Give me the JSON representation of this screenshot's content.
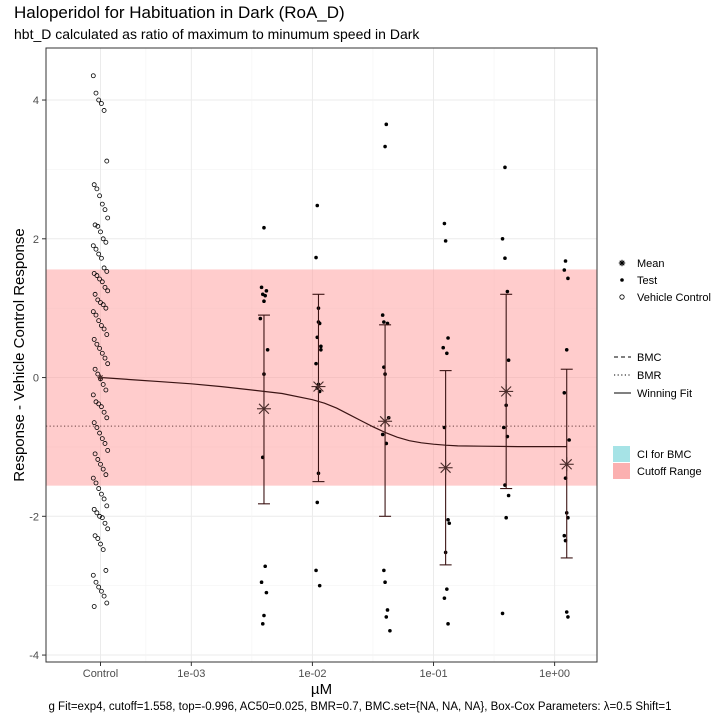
{
  "title": "Haloperidol for Habituation in Dark (RoA_D)",
  "subtitle": "hbt_D calculated as ratio of maximum to minumum speed in Dark",
  "footer": "g Fit=exp4, cutoff=1.558, top=-0.996, AC50=0.025, BMR=0.7, BMC.set={NA, NA, NA}, Box-Cox Parameters: λ=0.5 Shift=1",
  "chart_data": {
    "type": "scatter",
    "xlabel": "µM",
    "ylabel": "Response - Vehicle Control Response",
    "x_ticks": [
      "Control",
      "1e-03",
      "1e-02",
      "1e-01",
      "1e+00"
    ],
    "x_tick_log10": [
      null,
      -3,
      -2,
      -1,
      0
    ],
    "ylim": [
      -4.1,
      4.75
    ],
    "y_ticks": [
      -4,
      -2,
      0,
      2,
      4
    ],
    "log_x": true,
    "xlim_log10": [
      -4.2,
      0.35
    ],
    "control_log10": -3.75,
    "grid": true,
    "colors": {
      "cutoff_fill": "#ff9999",
      "ci_fill": "#a6e3e6",
      "cutoff_fill_legend": "#fbb0b0",
      "mean_color": "#4a2c2a",
      "fit_color": "#3b1414"
    },
    "cutoff_range": [
      -1.558,
      1.558
    ],
    "bmr_line": -0.7,
    "winning_fit": {
      "model": "exp4",
      "x_log10": [
        -3.75,
        -3.5,
        -3.25,
        -3.0,
        -2.75,
        -2.5,
        -2.25,
        -2.0,
        -1.9,
        -1.8,
        -1.7,
        -1.6,
        -1.5,
        -1.4,
        -1.3,
        -1.2,
        -1.1,
        -1.0,
        -0.9,
        -0.8,
        -0.6,
        -0.3,
        0.0,
        0.1
      ],
      "y": [
        0.0,
        -0.03,
        -0.06,
        -0.09,
        -0.13,
        -0.18,
        -0.23,
        -0.32,
        -0.37,
        -0.44,
        -0.53,
        -0.62,
        -0.71,
        -0.79,
        -0.86,
        -0.91,
        -0.94,
        -0.96,
        -0.975,
        -0.985,
        -0.99,
        -0.995,
        -0.996,
        -0.996
      ]
    },
    "mean_points": [
      {
        "x_log10": -3.75,
        "y": 0.0
      },
      {
        "x_log10": -2.4,
        "y": -0.45,
        "ci": [
          -1.82,
          0.9
        ]
      },
      {
        "x_log10": -1.95,
        "y": -0.13,
        "ci": [
          -1.5,
          1.2
        ]
      },
      {
        "x_log10": -1.4,
        "y": -0.63,
        "ci": [
          -2.0,
          0.76
        ]
      },
      {
        "x_log10": -0.9,
        "y": -1.3,
        "ci": [
          -2.7,
          0.1
        ]
      },
      {
        "x_log10": -0.4,
        "y": -0.2,
        "ci": [
          -1.6,
          1.2
        ]
      },
      {
        "x_log10": 0.1,
        "y": -1.25,
        "ci": [
          -2.6,
          0.12
        ]
      }
    ],
    "test_series": [
      {
        "x_log10": [
          -2.4,
          -2.42,
          -2.38,
          -2.41,
          -2.39,
          -2.4,
          -2.43,
          -2.37,
          -2.4,
          -2.41,
          -2.39,
          -2.42,
          -2.38,
          -2.4,
          -2.41
        ],
        "y": [
          2.16,
          1.3,
          1.25,
          1.2,
          1.18,
          1.1,
          0.85,
          0.4,
          0.05,
          -1.15,
          -2.72,
          -2.95,
          -3.1,
          -3.43,
          -3.55
        ]
      },
      {
        "x_log10": [
          -1.96,
          -1.97,
          -1.95,
          -1.94,
          -1.96,
          -1.93,
          -1.97,
          -1.95,
          -1.96,
          -1.94,
          -1.95,
          -1.96,
          -1.97,
          -1.94,
          -1.95,
          -1.93
        ],
        "y": [
          2.48,
          1.73,
          1.0,
          0.78,
          0.58,
          0.4,
          0.2,
          -0.1,
          -0.15,
          -0.2,
          -1.38,
          -1.8,
          -2.78,
          -3.0,
          0.8,
          0.45
        ]
      },
      {
        "x_log10": [
          -1.39,
          -1.4,
          -1.42,
          -1.38,
          -1.41,
          -1.4,
          -1.37,
          -1.42,
          -1.39,
          -1.41,
          -1.4,
          -1.38,
          -1.39,
          -1.36,
          -1.41
        ],
        "y": [
          3.65,
          3.33,
          0.9,
          0.78,
          0.15,
          0.05,
          -0.58,
          -0.82,
          -0.95,
          -2.78,
          -2.95,
          -3.35,
          -3.45,
          -3.65,
          0.8
        ]
      },
      {
        "x_log10": [
          -0.91,
          -0.9,
          -0.88,
          -0.92,
          -0.89,
          -0.91,
          -0.88,
          -0.87,
          -0.9,
          -0.89,
          -0.91,
          -0.88
        ],
        "y": [
          2.22,
          1.97,
          0.57,
          0.43,
          0.35,
          -0.72,
          -2.05,
          -2.1,
          -2.52,
          -3.05,
          -3.18,
          -3.55
        ]
      },
      {
        "x_log10": [
          -0.43,
          -0.41,
          -0.39,
          -0.38,
          -0.4,
          -0.42,
          -0.39,
          -0.41,
          -0.38,
          -0.4,
          -0.43,
          -0.41
        ],
        "y": [
          2.0,
          1.72,
          1.24,
          0.25,
          -0.4,
          -0.72,
          -0.85,
          -1.55,
          -1.7,
          -2.02,
          -3.4,
          3.03
        ]
      },
      {
        "x_log10": [
          0.09,
          0.08,
          0.11,
          0.1,
          0.08,
          0.12,
          0.09,
          0.1,
          0.11,
          0.08,
          0.09,
          0.1,
          0.11
        ],
        "y": [
          1.68,
          1.55,
          1.43,
          0.4,
          -0.22,
          -0.9,
          -1.45,
          -1.95,
          -2.02,
          -2.28,
          -2.35,
          -3.38,
          -3.45
        ]
      }
    ],
    "vehicle_control_y": [
      4.35,
      4.1,
      4.0,
      3.95,
      3.85,
      3.12,
      2.78,
      2.72,
      2.62,
      2.5,
      2.42,
      2.3,
      2.2,
      2.18,
      2.1,
      2.0,
      1.95,
      1.9,
      1.85,
      1.78,
      1.72,
      1.58,
      1.53,
      1.5,
      1.47,
      1.42,
      1.38,
      1.3,
      1.25,
      1.2,
      1.12,
      1.08,
      1.05,
      1.0,
      0.95,
      0.9,
      0.82,
      0.75,
      0.7,
      0.62,
      0.55,
      0.48,
      0.42,
      0.35,
      0.28,
      0.2,
      0.12,
      0.05,
      -0.02,
      -0.1,
      -0.18,
      -0.25,
      -0.35,
      -0.38,
      -0.42,
      -0.5,
      -0.58,
      -0.65,
      -0.72,
      -0.8,
      -0.88,
      -0.95,
      -1.05,
      -1.1,
      -1.18,
      -1.25,
      -1.32,
      -1.4,
      -1.45,
      -1.52,
      -1.6,
      -1.68,
      -1.75,
      -1.85,
      -1.9,
      -1.95,
      -2.0,
      -2.02,
      -2.1,
      -2.18,
      -2.28,
      -2.32,
      -2.4,
      -2.48,
      -2.78,
      -2.85,
      -2.95,
      -3.02,
      -3.08,
      -3.15,
      -3.25,
      -3.3
    ],
    "legend": {
      "shapes": [
        "Mean",
        "Test",
        "Vehicle Control"
      ],
      "lines": [
        "BMC",
        "BMR",
        "Winning Fit"
      ],
      "fills": [
        "CI for BMC",
        "Cutoff Range"
      ]
    }
  }
}
